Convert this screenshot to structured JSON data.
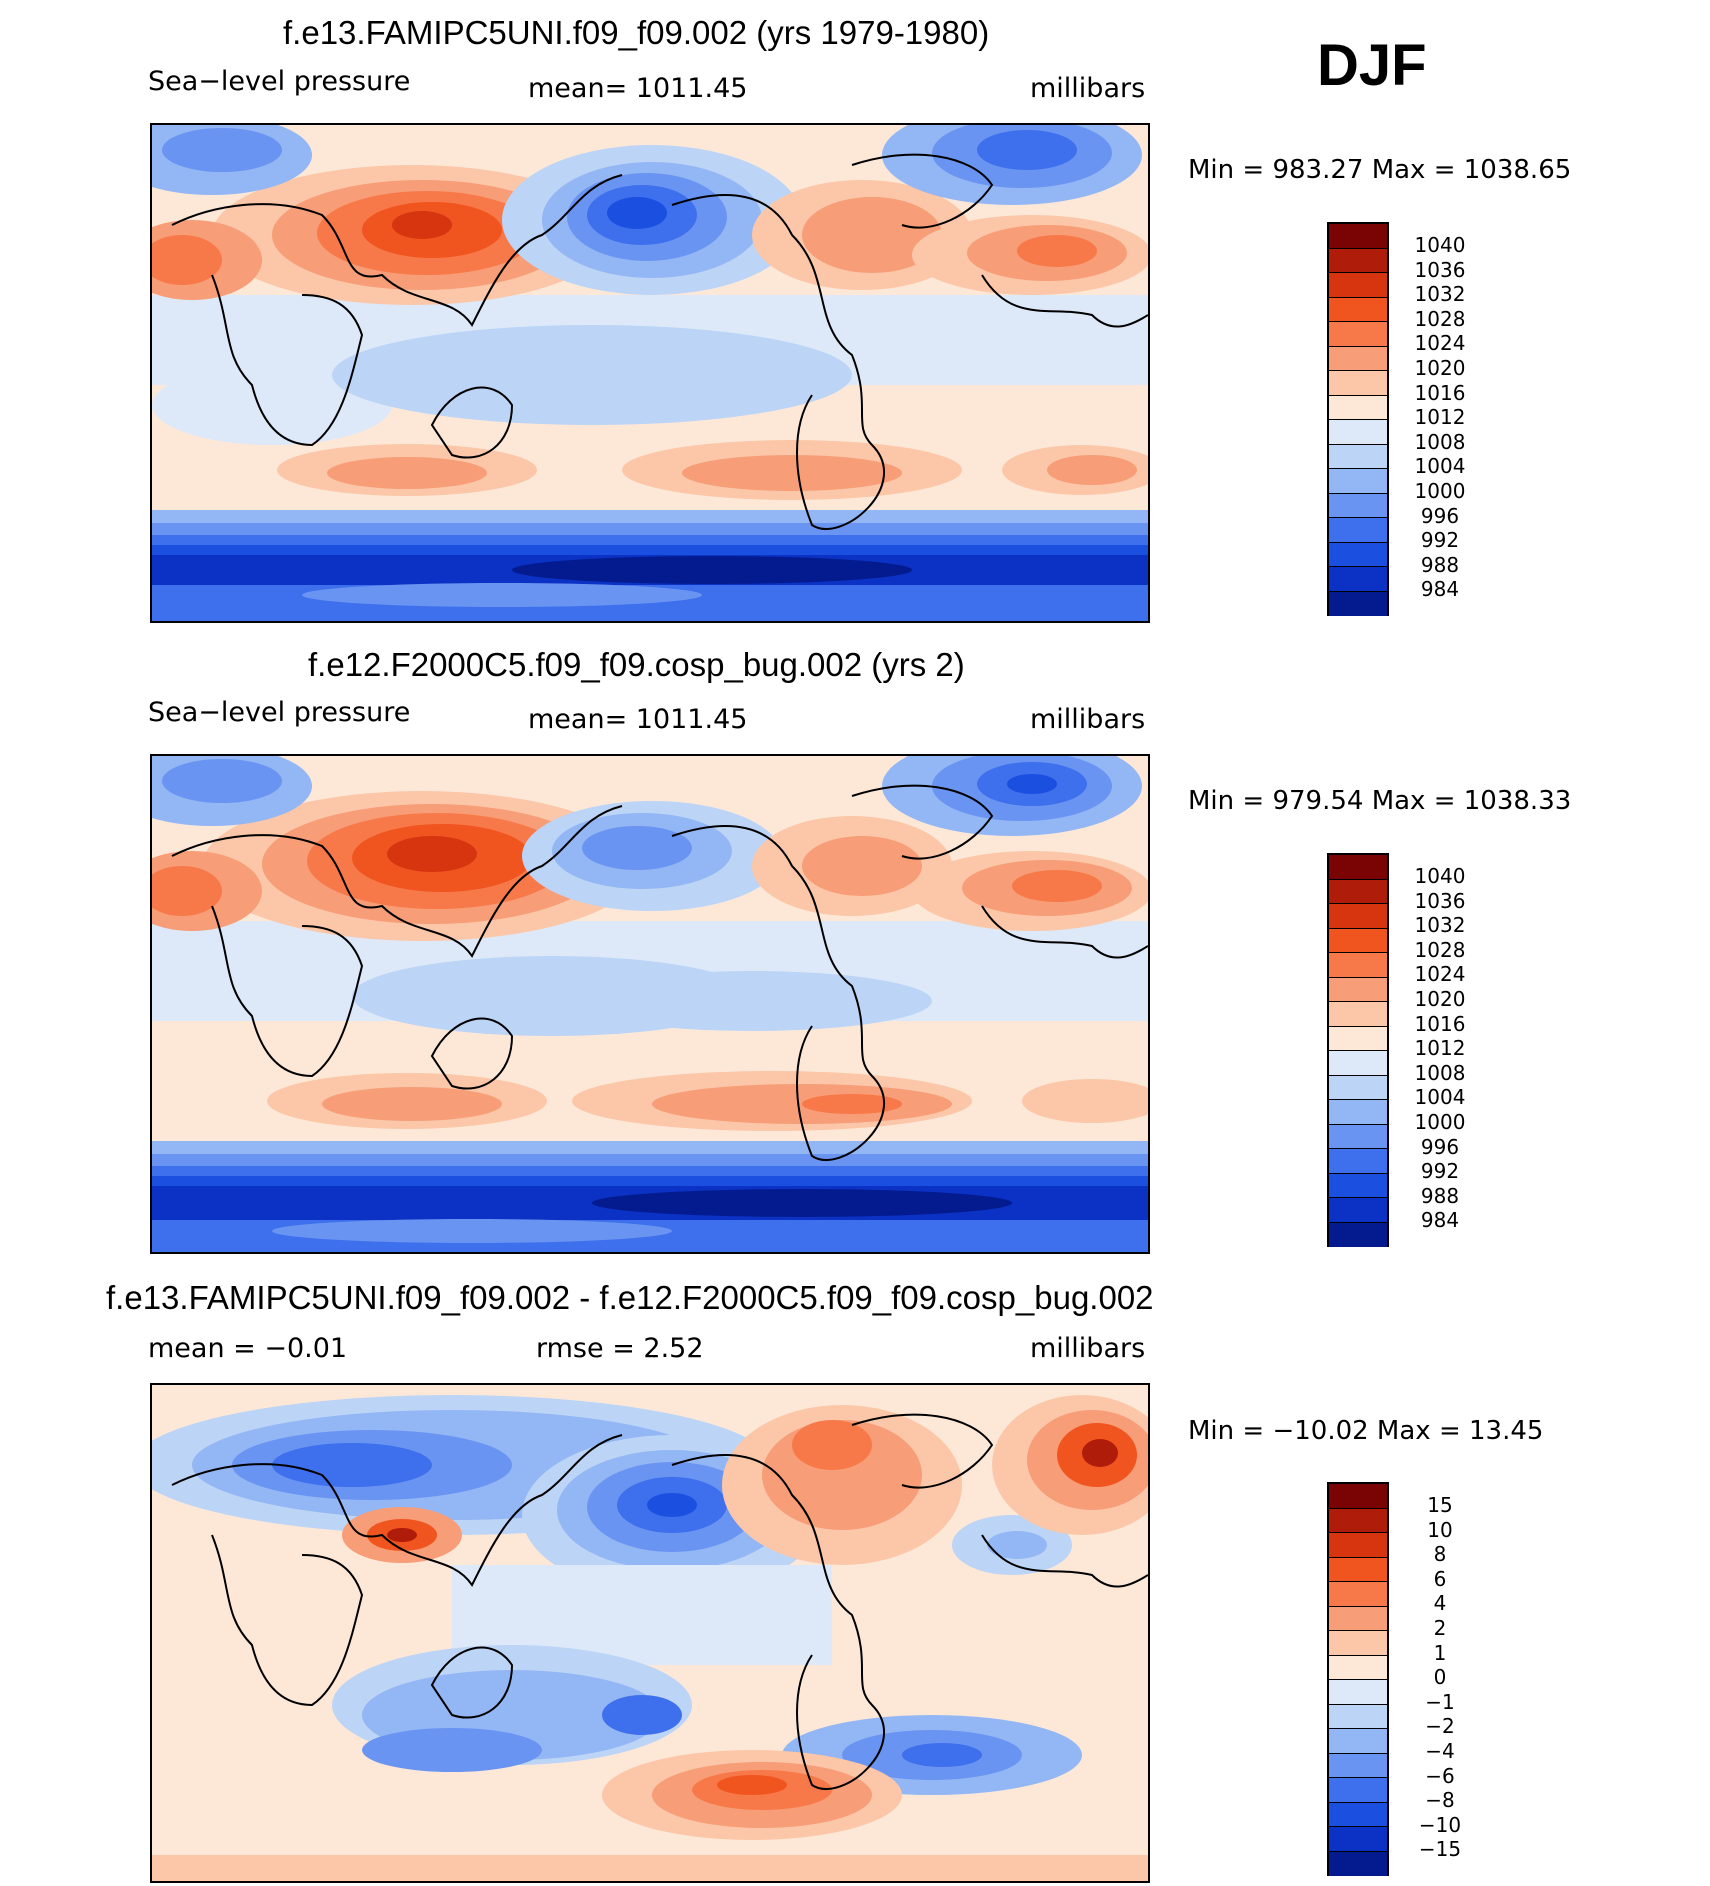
{
  "season": "DJF",
  "panels": [
    {
      "title": "f.e13.FAMIPC5UNI.f09_f09.002 (yrs 1979-1980)",
      "left_label": "Sea−level pressure",
      "center_label": "mean=  1011.45",
      "right_label": "millibars",
      "minmax": "Min  =  983.27  Max  =  1038.65",
      "colorbar_labels": [
        "1040",
        "1036",
        "1032",
        "1028",
        "1024",
        "1020",
        "1016",
        "1012",
        "1008",
        "1004",
        "1000",
        "996",
        "992",
        "988",
        "984"
      ]
    },
    {
      "title": "f.e12.F2000C5.f09_f09.cosp_bug.002 (yrs 2)",
      "left_label": "Sea−level pressure",
      "center_label": "mean=  1011.45",
      "right_label": "millibars",
      "minmax": "Min  =  979.54  Max  =  1038.33",
      "colorbar_labels": [
        "1040",
        "1036",
        "1032",
        "1028",
        "1024",
        "1020",
        "1016",
        "1012",
        "1008",
        "1004",
        "1000",
        "996",
        "992",
        "988",
        "984"
      ]
    },
    {
      "title": "f.e13.FAMIPC5UNI.f09_f09.002 - f.e12.F2000C5.f09_f09.cosp_bug.002",
      "left_label": "mean  =    −0.01",
      "center_label": "rmse  =      2.52",
      "right_label": "millibars",
      "minmax": "Min  =  −10.02  Max  =     13.45",
      "colorbar_labels": [
        "15",
        "10",
        "8",
        "6",
        "4",
        "2",
        "1",
        "0",
        "−1",
        "−2",
        "−4",
        "−6",
        "−8",
        "−10",
        "−15"
      ]
    }
  ],
  "colors": {
    "scale": [
      "#7a0403",
      "#b01c0a",
      "#d73410",
      "#f0541f",
      "#f7794a",
      "#f79d77",
      "#fbc7a8",
      "#fde8d8",
      "#dde9f8",
      "#bcd4f6",
      "#93b6f4",
      "#6a94f1",
      "#3e6fec",
      "#1a4fe0",
      "#0b32c4",
      "#041b8f"
    ]
  }
}
